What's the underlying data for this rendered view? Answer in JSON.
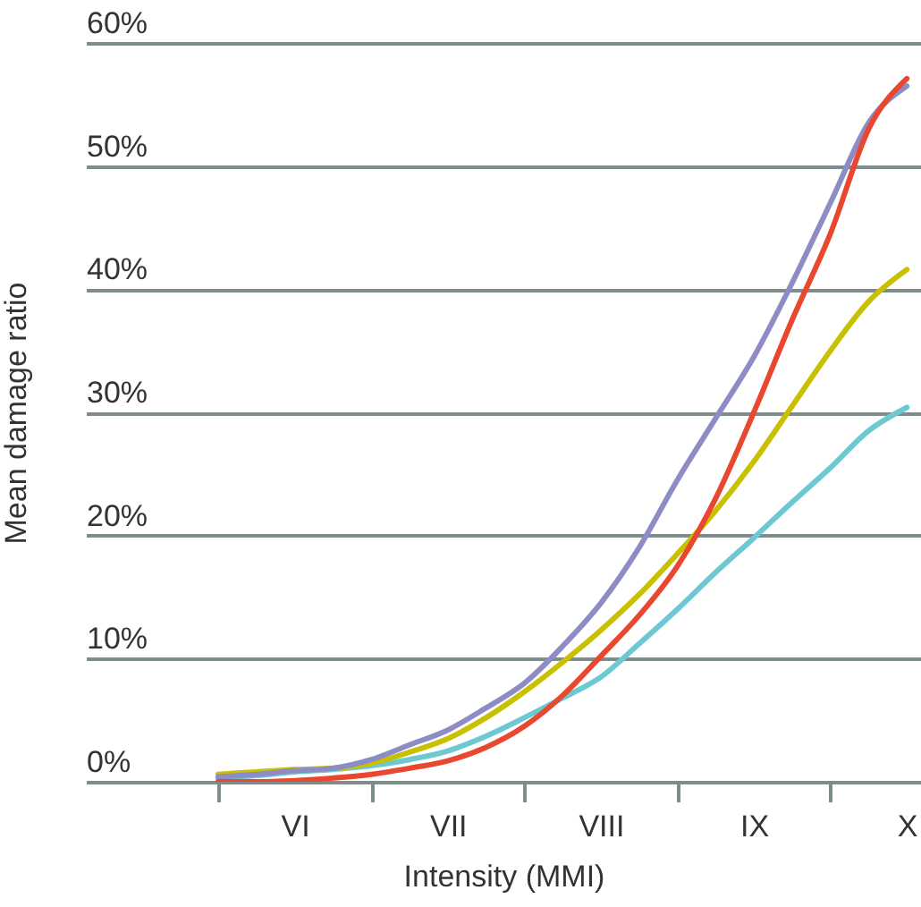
{
  "chart_data": {
    "type": "line",
    "xlabel": "Intensity (MMI)",
    "ylabel": "Mean damage ratio",
    "categories": [
      null,
      null,
      "VI",
      null,
      null,
      null,
      "VII",
      null,
      null,
      null,
      "VIII",
      null,
      null,
      null,
      "IX",
      null,
      null,
      null,
      "X"
    ],
    "ylim": [
      0,
      60
    ],
    "yticks": [
      {
        "value": 0,
        "label": "0%"
      },
      {
        "value": 10,
        "label": "10%"
      },
      {
        "value": 20,
        "label": "20%"
      },
      {
        "value": 30,
        "label": "30%"
      },
      {
        "value": 40,
        "label": "40%"
      },
      {
        "value": 50,
        "label": "50%"
      },
      {
        "value": 60,
        "label": "60%"
      }
    ],
    "grid": "y",
    "line_style": "solid",
    "series": [
      {
        "color": "#6cc9d3",
        "values": [
          0.3,
          0.5,
          0.8,
          1.0,
          1.3,
          1.8,
          2.5,
          3.7,
          5.2,
          6.8,
          8.5,
          11.2,
          14,
          17,
          19.8,
          22.7,
          25.5,
          28.5,
          30.4
        ]
      },
      {
        "color": "#c9c000",
        "values": [
          0.6,
          0.8,
          1.0,
          1.1,
          1.5,
          2.4,
          3.5,
          5.2,
          7.3,
          9.7,
          12.3,
          15.2,
          18.5,
          22,
          26,
          30.5,
          35,
          39,
          41.6
        ]
      },
      {
        "color": "#8e8cc4",
        "values": [
          0.4,
          0.6,
          0.9,
          1.1,
          1.8,
          3,
          4.2,
          6,
          8,
          11,
          14.5,
          19,
          24.5,
          29.5,
          34.5,
          40.5,
          47,
          53.5,
          56.5
        ]
      },
      {
        "color": "#e8482f",
        "values": [
          0,
          0,
          0.1,
          0.3,
          0.6,
          1.1,
          1.7,
          2.8,
          4.5,
          7,
          10.2,
          13.5,
          17.5,
          23,
          30,
          37.5,
          44.5,
          53,
          57.1
        ]
      }
    ]
  }
}
